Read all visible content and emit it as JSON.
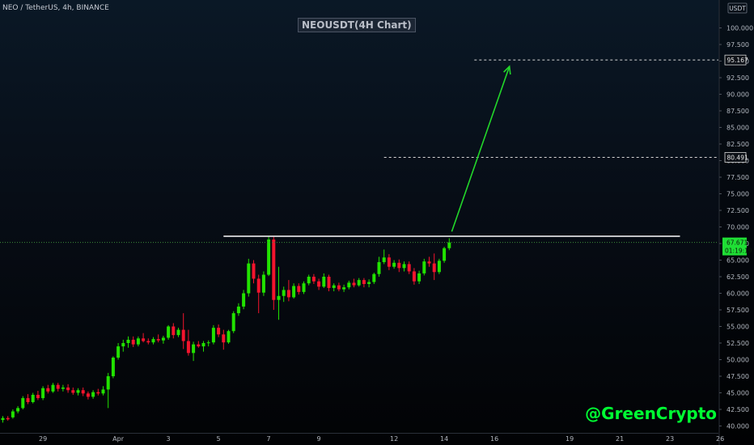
{
  "header": {
    "symbol_line": "NEO / TetherUS, 4h, BINANCE",
    "chart_title": "NEOUSDT(4H Chart)",
    "currency_badge": "USDT"
  },
  "watermark": "@GreenCrypto",
  "price_label": {
    "price": "67.671",
    "countdown": "01:19:19"
  },
  "level_labels": [
    "95.167",
    "80.491"
  ],
  "colors": {
    "up": "#21e200",
    "down": "#f4142d",
    "arrow": "#22d72a",
    "resistance": "#ffffff",
    "current_price_line": "#3d8c3a",
    "label_bg": "#0d1117",
    "axis_text": "#b3b8c0",
    "price_badge_bg": "#1fdf35"
  },
  "chart_data": {
    "type": "candlestick",
    "title": "NEOUSDT(4H Chart)",
    "symbol": "NEO / TetherUS",
    "interval": "4h",
    "exchange": "BINANCE",
    "ylim": [
      39.5,
      102.5
    ],
    "y_ticks": [
      "100.000",
      "97.500",
      "95.000",
      "92.500",
      "90.000",
      "87.500",
      "85.000",
      "82.500",
      "80.000",
      "77.500",
      "75.000",
      "72.500",
      "70.000",
      "67.500",
      "65.000",
      "62.500",
      "60.000",
      "57.500",
      "55.000",
      "52.500",
      "50.000",
      "47.500",
      "45.000",
      "42.500",
      "40.000"
    ],
    "x_ticks": [
      {
        "label": "29",
        "bar": 8
      },
      {
        "label": "Apr",
        "bar": 23
      },
      {
        "label": "3",
        "bar": 33
      },
      {
        "label": "5",
        "bar": 43
      },
      {
        "label": "7",
        "bar": 53
      },
      {
        "label": "9",
        "bar": 63
      },
      {
        "label": "12",
        "bar": 78
      },
      {
        "label": "14",
        "bar": 88
      },
      {
        "label": "16",
        "bar": 98
      },
      {
        "label": "19",
        "bar": 113
      },
      {
        "label": "21",
        "bar": 123
      },
      {
        "label": "23",
        "bar": 133
      },
      {
        "label": "26",
        "bar": 143
      }
    ],
    "candles": [
      [
        40.9,
        41.5,
        40.5,
        41.2
      ],
      [
        41.2,
        41.5,
        40.8,
        41.0
      ],
      [
        41.3,
        42.5,
        41.1,
        42.2
      ],
      [
        42.2,
        43.0,
        41.9,
        42.7
      ],
      [
        42.7,
        44.5,
        42.5,
        44.2
      ],
      [
        44.2,
        44.8,
        43.3,
        43.6
      ],
      [
        43.6,
        45.0,
        43.4,
        44.7
      ],
      [
        44.7,
        45.3,
        43.9,
        44.2
      ],
      [
        44.2,
        46.0,
        43.9,
        45.7
      ],
      [
        45.7,
        46.2,
        44.9,
        45.2
      ],
      [
        45.2,
        46.5,
        45.0,
        46.2
      ],
      [
        46.2,
        46.5,
        45.2,
        45.6
      ],
      [
        45.6,
        46.2,
        45.2,
        45.8
      ],
      [
        45.8,
        46.3,
        45.0,
        45.4
      ],
      [
        45.4,
        45.8,
        44.7,
        45.0
      ],
      [
        45.0,
        45.7,
        44.6,
        45.4
      ],
      [
        45.4,
        45.8,
        44.5,
        44.9
      ],
      [
        44.9,
        45.2,
        44.0,
        44.4
      ],
      [
        44.4,
        45.4,
        44.1,
        45.1
      ],
      [
        45.1,
        45.6,
        44.6,
        44.9
      ],
      [
        44.9,
        46.0,
        44.6,
        45.5
      ],
      [
        45.5,
        48.0,
        42.7,
        47.5
      ],
      [
        47.5,
        50.5,
        47.2,
        50.3
      ],
      [
        50.3,
        52.5,
        50.0,
        52.0
      ],
      [
        52.0,
        53.0,
        51.2,
        52.5
      ],
      [
        52.5,
        53.5,
        51.8,
        53.0
      ],
      [
        53.0,
        53.5,
        51.9,
        52.3
      ],
      [
        52.3,
        53.5,
        52.0,
        53.2
      ],
      [
        53.2,
        54.0,
        52.6,
        52.8
      ],
      [
        52.8,
        53.2,
        52.3,
        52.6
      ],
      [
        52.6,
        53.4,
        52.3,
        53.1
      ],
      [
        53.1,
        53.8,
        52.6,
        52.9
      ],
      [
        52.9,
        53.6,
        52.4,
        53.3
      ],
      [
        53.3,
        55.2,
        53.0,
        55.0
      ],
      [
        55.0,
        55.5,
        53.2,
        53.7
      ],
      [
        53.7,
        54.8,
        53.4,
        54.5
      ],
      [
        54.5,
        57.0,
        51.6,
        52.8
      ],
      [
        52.8,
        54.5,
        50.6,
        51.0
      ],
      [
        51.0,
        52.7,
        49.8,
        52.3
      ],
      [
        52.3,
        52.8,
        51.8,
        52.0
      ],
      [
        52.0,
        52.8,
        51.2,
        52.5
      ],
      [
        52.5,
        52.9,
        52.0,
        52.6
      ],
      [
        52.6,
        55.2,
        52.3,
        54.8
      ],
      [
        54.8,
        55.3,
        53.4,
        53.8
      ],
      [
        53.8,
        54.5,
        51.5,
        52.6
      ],
      [
        52.6,
        54.5,
        52.4,
        54.3
      ],
      [
        54.3,
        57.3,
        54.0,
        57.0
      ],
      [
        57.0,
        58.5,
        56.6,
        58.0
      ],
      [
        58.0,
        60.5,
        57.6,
        60.0
      ],
      [
        60.0,
        65.2,
        59.5,
        64.5
      ],
      [
        64.5,
        65.0,
        61.5,
        62.2
      ],
      [
        62.2,
        62.8,
        57.0,
        60.1
      ],
      [
        60.1,
        63.3,
        59.6,
        62.8
      ],
      [
        62.8,
        68.5,
        62.6,
        68.1
      ],
      [
        68.1,
        68.5,
        57.5,
        59.0
      ],
      [
        59.0,
        64.0,
        56.0,
        59.6
      ],
      [
        59.6,
        61.0,
        58.7,
        60.5
      ],
      [
        60.5,
        62.0,
        58.8,
        59.4
      ],
      [
        59.4,
        61.5,
        59.2,
        61.1
      ],
      [
        61.1,
        61.5,
        59.8,
        60.2
      ],
      [
        60.2,
        61.8,
        59.9,
        61.5
      ],
      [
        61.5,
        62.8,
        61.2,
        62.5
      ],
      [
        62.5,
        62.9,
        61.4,
        61.8
      ],
      [
        61.8,
        62.2,
        60.5,
        61.0
      ],
      [
        61.0,
        63.0,
        60.8,
        62.5
      ],
      [
        62.5,
        62.8,
        60.3,
        60.8
      ],
      [
        60.8,
        61.5,
        60.3,
        61.2
      ],
      [
        61.2,
        61.6,
        60.3,
        60.6
      ],
      [
        60.6,
        61.3,
        60.2,
        60.9
      ],
      [
        60.9,
        61.9,
        60.6,
        61.6
      ],
      [
        61.6,
        62.2,
        60.9,
        61.2
      ],
      [
        61.2,
        62.3,
        61.0,
        62.0
      ],
      [
        62.0,
        62.3,
        60.9,
        61.4
      ],
      [
        61.4,
        62.1,
        60.9,
        61.7
      ],
      [
        61.7,
        63.1,
        61.4,
        62.9
      ],
      [
        62.9,
        65.5,
        62.5,
        64.7
      ],
      [
        64.7,
        66.6,
        64.4,
        65.4
      ],
      [
        65.4,
        65.9,
        63.5,
        64.0
      ],
      [
        64.0,
        65.0,
        63.7,
        64.6
      ],
      [
        64.6,
        65.1,
        63.2,
        63.8
      ],
      [
        63.8,
        64.8,
        63.3,
        64.4
      ],
      [
        64.4,
        64.8,
        62.9,
        63.3
      ],
      [
        63.3,
        63.8,
        61.3,
        61.8
      ],
      [
        61.8,
        63.4,
        61.4,
        63.0
      ],
      [
        63.0,
        65.2,
        62.7,
        64.8
      ],
      [
        64.8,
        65.5,
        64.0,
        64.5
      ],
      [
        64.5,
        66.0,
        62.0,
        63.2
      ],
      [
        63.2,
        65.2,
        62.9,
        64.9
      ],
      [
        64.9,
        67.0,
        64.6,
        66.8
      ],
      [
        66.8,
        68.3,
        66.5,
        67.671
      ]
    ],
    "current_price": 67.671,
    "annotations": {
      "resistance": {
        "value": 68.6,
        "from_bar": 44,
        "to_bar": 135
      },
      "level_lines": [
        {
          "value": 95.167,
          "from_bar": 94
        },
        {
          "value": 80.491,
          "from_bar": 76
        }
      ],
      "arrow": {
        "from": {
          "bar": 89.5,
          "value": 69.3
        },
        "to": {
          "bar": 101,
          "value": 94.2
        }
      }
    }
  }
}
